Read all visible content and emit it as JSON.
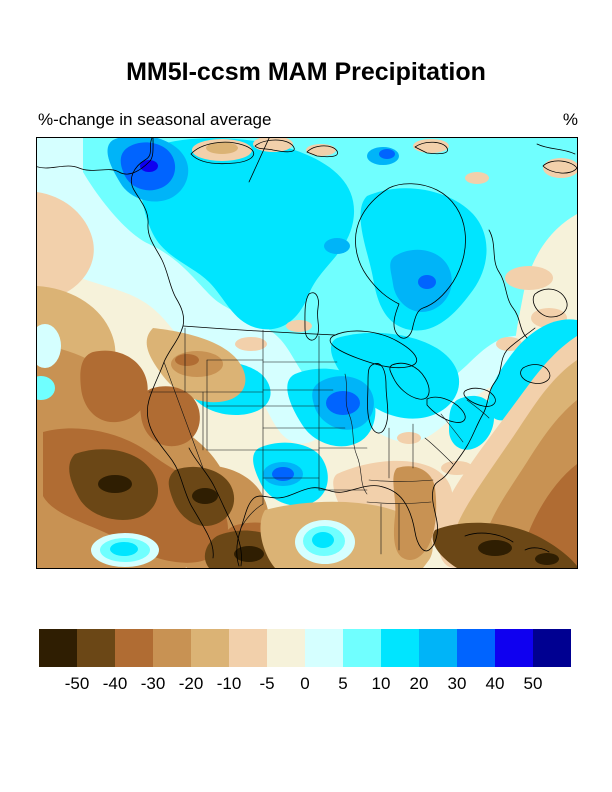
{
  "header": {
    "title": "MM5I-ccsm MAM Precipitation",
    "subtitle": "%-change in seasonal average",
    "units_label": "%"
  },
  "colorbar": {
    "tick_labels": [
      "-50",
      "-40",
      "-30",
      "-20",
      "-10",
      "-5",
      "0",
      "5",
      "10",
      "20",
      "30",
      "40",
      "50"
    ],
    "colors": [
      "#2f1e02",
      "#6b4716",
      "#b06c33",
      "#c89253",
      "#dbb375",
      "#f2d0ab",
      "#f6f2da",
      "#d5ffff",
      "#70ffff",
      "#00e5ff",
      "#00b4f8",
      "#0064ff",
      "#0f00f0",
      "#000091"
    ]
  },
  "chart_data": {
    "type": "filled_contour_map",
    "title": "MM5I-ccsm MAM Precipitation",
    "subtitle": "%-change in seasonal average",
    "units": "%",
    "region": "North America",
    "contour_levels": [
      -50,
      -40,
      -30,
      -20,
      -10,
      -5,
      0,
      5,
      10,
      20,
      30,
      40,
      50
    ],
    "palette_hex": [
      "#2f1e02",
      "#6b4716",
      "#b06c33",
      "#c89253",
      "#dbb375",
      "#f2d0ab",
      "#f6f2da",
      "#d5ffff",
      "#70ffff",
      "#00e5ff",
      "#00b4f8",
      "#0064ff",
      "#0f00f0",
      "#000091"
    ],
    "depicted_pattern": [
      {
        "area": "Yukon / northwestern Canada",
        "value_pct": "+30 to +50"
      },
      {
        "area": "central and eastern Canada, Hudson Bay, Great Lakes",
        "value_pct": "+10 to +30"
      },
      {
        "area": "upper Midwest (Iowa) and Oklahoma maxima",
        "value_pct": "+20 to +40"
      },
      {
        "area": "northern plains and Southeast US",
        "value_pct": "-5 to +5"
      },
      {
        "area": "Pacific Northwest coast and Montana/Idaho",
        "value_pct": "-10 to -30"
      },
      {
        "area": "Southwest US, Mexico, Baja",
        "value_pct": "-30 to -50"
      },
      {
        "area": "subtropical Atlantic, Gulf, Caribbean",
        "value_pct": "-20 to -50"
      }
    ]
  }
}
